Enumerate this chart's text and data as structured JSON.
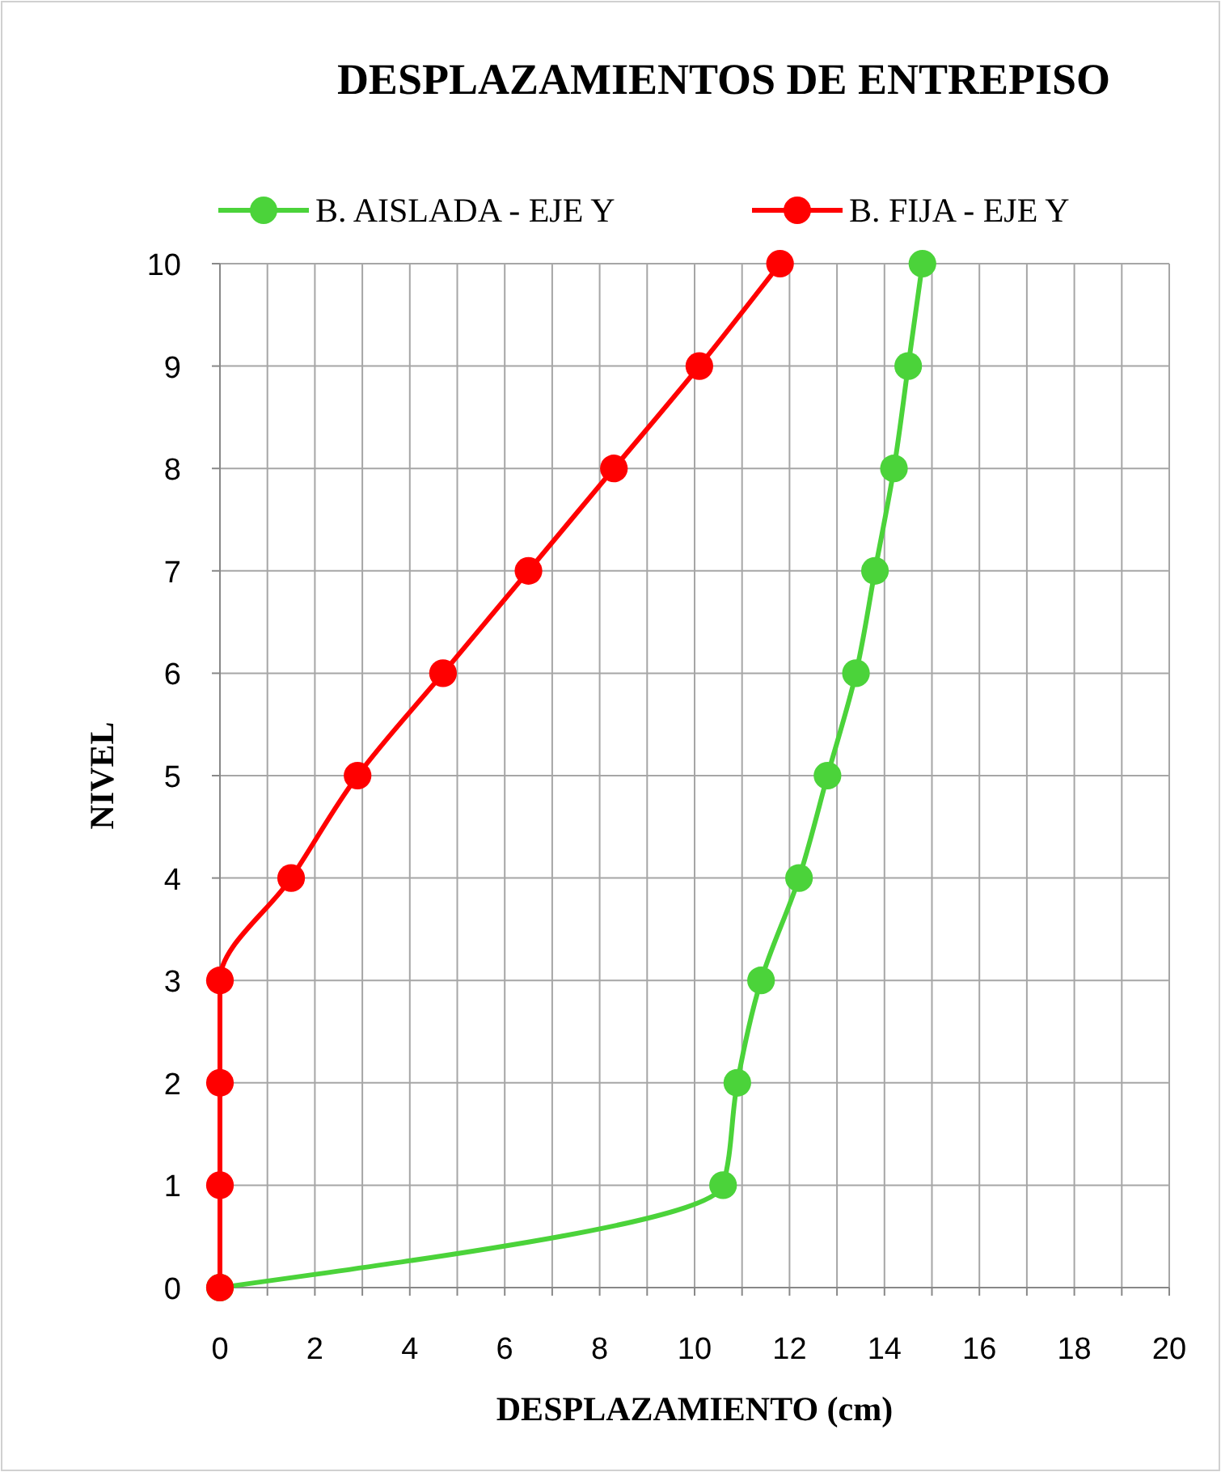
{
  "chart_data": {
    "type": "line",
    "title": "DESPLAZAMIENTOS DE ENTREPISO",
    "xlabel": "DESPLAZAMIENTO (cm)",
    "ylabel": "NIVEL",
    "series": [
      {
        "name": "B. AISLADA - EJE Y",
        "color": "#4bd33a",
        "x": [
          0,
          10.6,
          10.9,
          11.4,
          12.2,
          12.8,
          13.4,
          13.8,
          14.2,
          14.5,
          14.8
        ],
        "values": [
          0,
          1,
          2,
          3,
          4,
          5,
          6,
          7,
          8,
          9,
          10
        ]
      },
      {
        "name": "B. FIJA - EJE Y",
        "color": "#ff0000",
        "x": [
          0,
          0,
          0,
          0,
          1.5,
          2.9,
          4.7,
          6.5,
          8.3,
          10.1,
          11.8
        ],
        "values": [
          0,
          1,
          2,
          3,
          4,
          5,
          6,
          7,
          8,
          9,
          10
        ]
      }
    ],
    "xlim": [
      0,
      20
    ],
    "xticks": [
      0,
      {
        "value": 1,
        "label": null
      },
      2,
      {
        "value": 3,
        "label": null
      },
      4,
      {
        "value": 5,
        "label": null
      },
      6,
      {
        "value": 7,
        "label": null
      },
      8,
      {
        "value": 9,
        "label": null
      },
      10,
      {
        "value": 11,
        "label": null
      },
      12,
      {
        "value": 13,
        "label": null
      },
      14,
      {
        "value": 15,
        "label": null
      },
      16,
      {
        "value": 17,
        "label": null
      },
      18,
      {
        "value": 19,
        "label": null
      },
      20
    ],
    "ylim": [
      0,
      10
    ],
    "yticks": [
      0,
      1,
      2,
      3,
      4,
      5,
      6,
      7,
      8,
      9,
      10
    ],
    "grid": true,
    "legend": "top",
    "marker": "circle",
    "line_style": "solid"
  }
}
